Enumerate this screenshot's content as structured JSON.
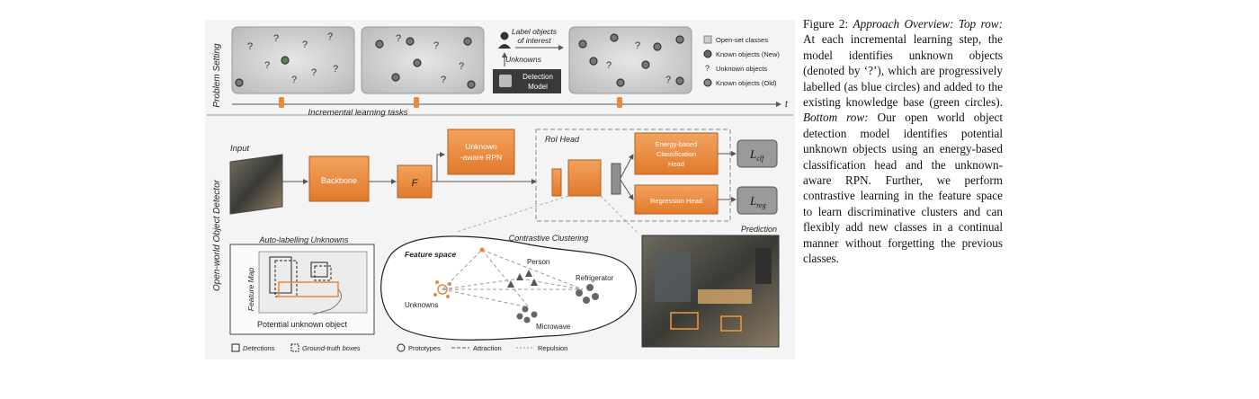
{
  "figure": {
    "section_labels": {
      "top": "Problem Setting",
      "bottom": "Open-world Object Detector"
    },
    "problem_setting": {
      "axis_label": "Incremental learning tasks",
      "time_symbol": "t",
      "label_objects": "Label objects",
      "of_interest": "of interest",
      "unknowns": "Unknowns",
      "detection_model": [
        "Detection",
        "Model"
      ],
      "legend": [
        "Open-set classes",
        "Known objects (New)",
        "Unknown objects",
        "Known objects (Old)"
      ]
    },
    "detector": {
      "input": "Input",
      "backbone": "Backbone",
      "feature": "F",
      "rpn": [
        "Unknown",
        "-aware RPN"
      ],
      "roi_head": "RoI Head",
      "cls_head": [
        "Energy-based",
        "Classification",
        "Head"
      ],
      "reg_head": "Regression Head",
      "loss_cls": "L",
      "loss_cls_sub": "clf",
      "loss_reg": "L",
      "loss_reg_sub": "reg",
      "prediction": "Prediction"
    },
    "auto_label": {
      "title": "Auto-labelling Unknowns",
      "feature_map": "Feature Map",
      "potential": "Potential unknown object"
    },
    "contrastive": {
      "title": "Contrastive Clustering",
      "feature_space": "Feature space",
      "classes": [
        "Person",
        "Refrigerator",
        "Microwave",
        "Unknowns"
      ]
    },
    "legend_bottom": [
      "Detections",
      "Ground-truth boxes",
      "Prototypes",
      "Attraction",
      "Repulsion"
    ],
    "colors": {
      "orange": "#e8883a",
      "panel": "#d6d6d6",
      "known_new": "#3b6fb6",
      "known_old": "#4a8a4a"
    }
  },
  "caption": {
    "label": "Figure 2:",
    "title": "Approach Overview:",
    "top_row": "Top row:",
    "text1": "At each incremental learning step, the model identifies unknown objects (denoted by ‘?’), which are progressively labelled (as blue circles) and added to the existing knowledge base (green circles).",
    "bottom_row": "Bottom row:",
    "text2": "Our open world object detection model identifies potential unknown objects using an energy-based classification head and the unknown-aware RPN. Further, we perform contrastive learning in the feature space to learn discriminative clusters and can flexibly add new classes in a continual manner without forgetting the previous classes."
  }
}
